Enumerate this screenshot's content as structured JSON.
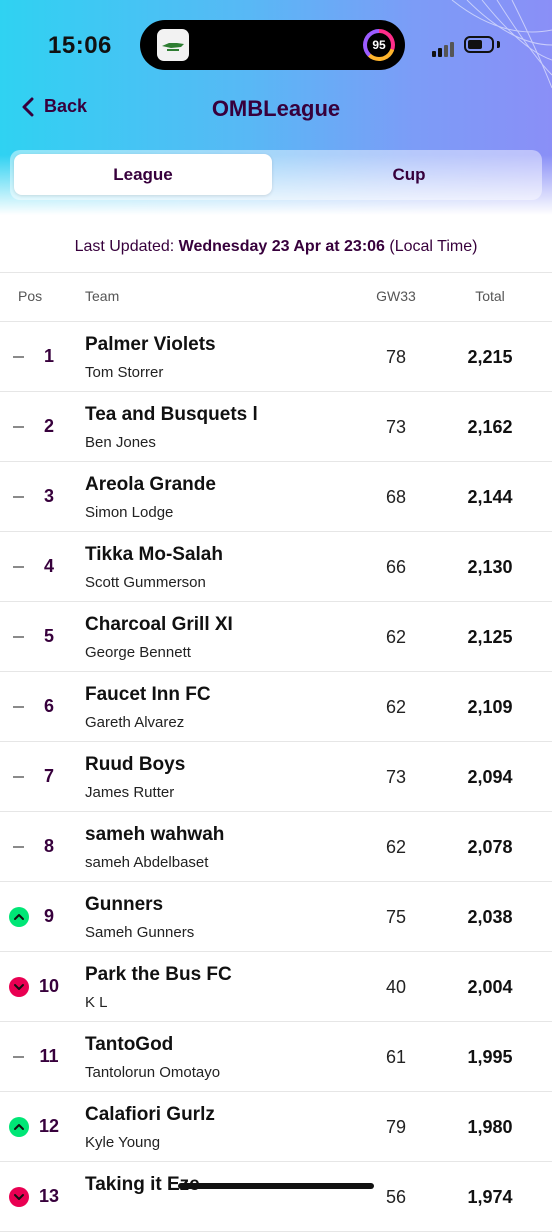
{
  "status": {
    "time": "15:06",
    "activity_score": "95"
  },
  "nav": {
    "back_label": "Back",
    "title": "OMBLeague"
  },
  "tabs": [
    {
      "label": "League",
      "active": true
    },
    {
      "label": "Cup",
      "active": false
    }
  ],
  "updated": {
    "prefix": "Last Updated: ",
    "date": "Wednesday 23 Apr at 23:06",
    "suffix": " (Local Time)"
  },
  "table": {
    "headers": {
      "pos": "Pos",
      "team": "Team",
      "gw": "GW33",
      "total": "Total"
    },
    "rows": [
      {
        "movement": "same",
        "pos": "1",
        "team": "Palmer Violets",
        "manager": "Tom Storrer",
        "gw": "78",
        "total": "2,215"
      },
      {
        "movement": "same",
        "pos": "2",
        "team": "Tea and Busquets l",
        "manager": "Ben Jones",
        "gw": "73",
        "total": "2,162"
      },
      {
        "movement": "same",
        "pos": "3",
        "team": "Areola Grande",
        "manager": "Simon Lodge",
        "gw": "68",
        "total": "2,144"
      },
      {
        "movement": "same",
        "pos": "4",
        "team": "Tikka Mo-Salah",
        "manager": "Scott Gummerson",
        "gw": "66",
        "total": "2,130"
      },
      {
        "movement": "same",
        "pos": "5",
        "team": "Charcoal Grill XI",
        "manager": "George Bennett",
        "gw": "62",
        "total": "2,125"
      },
      {
        "movement": "same",
        "pos": "6",
        "team": "Faucet Inn FC",
        "manager": "Gareth Alvarez",
        "gw": "62",
        "total": "2,109"
      },
      {
        "movement": "same",
        "pos": "7",
        "team": "Ruud Boys",
        "manager": "James Rutter",
        "gw": "73",
        "total": "2,094"
      },
      {
        "movement": "same",
        "pos": "8",
        "team": "sameh wahwah",
        "manager": "sameh Abdelbaset",
        "gw": "62",
        "total": "2,078"
      },
      {
        "movement": "up",
        "pos": "9",
        "team": "Gunners",
        "manager": "Sameh Gunners",
        "gw": "75",
        "total": "2,038"
      },
      {
        "movement": "down",
        "pos": "10",
        "team": "Park the Bus FC",
        "manager": "K L",
        "gw": "40",
        "total": "2,004"
      },
      {
        "movement": "same",
        "pos": "11",
        "team": "TantoGod",
        "manager": "Tantolorun Omotayo",
        "gw": "61",
        "total": "1,995"
      },
      {
        "movement": "up",
        "pos": "12",
        "team": "Calafiori Gurlz",
        "manager": "Kyle Young",
        "gw": "79",
        "total": "1,980"
      },
      {
        "movement": "down",
        "pos": "13",
        "team": "Taking it Eze",
        "manager": "",
        "gw": "56",
        "total": "1,974"
      }
    ]
  }
}
